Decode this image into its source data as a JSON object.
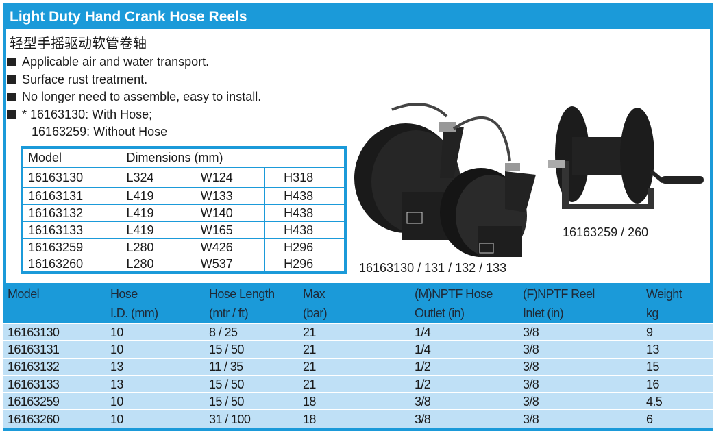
{
  "title": "Light Duty Hand Crank Hose Reels",
  "subtitle_cn": "轻型手摇驱动软管卷轴",
  "bullets": [
    "Applicable air and water transport.",
    "Surface rust treatment.",
    "No longer need to assemble, easy to install.",
    "* 16163130: With Hose;"
  ],
  "bullet_continuation": "16163259: Without Hose",
  "dimensions_table": {
    "headers": [
      "Model",
      "Dimensions (mm)"
    ],
    "rows": [
      [
        "16163130",
        "L324",
        "W124",
        "H318"
      ],
      [
        "16163131",
        "L419",
        "W133",
        "H438"
      ],
      [
        "16163132",
        "L419",
        "W140",
        "H438"
      ],
      [
        "16163133",
        "L419",
        "W165",
        "H438"
      ],
      [
        "16163259",
        "L280",
        "W426",
        "H296"
      ],
      [
        "16163260",
        "L280",
        "W537",
        "H296"
      ]
    ]
  },
  "captions": {
    "spring_reels": "16163130 / 131 / 132 / 133",
    "crank_reel": "16163259 / 260"
  },
  "spec_table": {
    "headers": [
      [
        "Model",
        ""
      ],
      [
        "Hose",
        "I.D. (mm)"
      ],
      [
        "Hose Length",
        "(mtr / ft)"
      ],
      [
        "Max",
        "(bar)"
      ],
      [
        "(M)NPTF Hose",
        "Outlet (in)"
      ],
      [
        "(F)NPTF Reel",
        "Inlet (in)"
      ],
      [
        "Weight",
        "kg"
      ]
    ],
    "rows": [
      [
        "16163130",
        "10",
        "8 / 25",
        "21",
        "1/4",
        "3/8",
        "9"
      ],
      [
        "16163131",
        "10",
        "15 / 50",
        "21",
        "1/4",
        "3/8",
        "13"
      ],
      [
        "16163132",
        "13",
        "11 / 35",
        "21",
        "1/2",
        "3/8",
        "15"
      ],
      [
        "16163133",
        "13",
        "15 / 50",
        "21",
        "1/2",
        "3/8",
        "16"
      ],
      [
        "16163259",
        "10",
        "15 / 50",
        "18",
        "3/8",
        "3/8",
        "4.5"
      ],
      [
        "16163260",
        "10",
        "31 / 100",
        "18",
        "3/8",
        "3/8",
        "6"
      ]
    ]
  },
  "colors": {
    "accent": "#1b9ad9",
    "row_fill": "#bfe0f6"
  }
}
